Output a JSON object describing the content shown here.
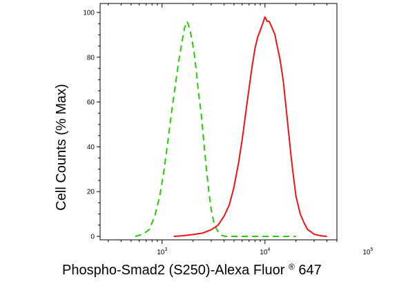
{
  "chart_data": {
    "type": "line",
    "title": "",
    "xlabel_main": "Phospho-Smad2 (S250)-Alexa Fluor",
    "xlabel_sup": "®",
    "xlabel_tail": " 647",
    "ylabel": "Cell Counts (% Max)",
    "x_scale": "log",
    "xlim": [
      250,
      50000
    ],
    "ylim": [
      0,
      100
    ],
    "y_ticks": [
      0,
      20,
      40,
      60,
      80,
      100
    ],
    "y_tick_labels": [
      "0",
      "20",
      "40",
      "60",
      "80",
      "100"
    ],
    "x_major_ticks": [
      {
        "value": 1000,
        "base": "10",
        "exp": "3"
      },
      {
        "value": 10000,
        "base": "10",
        "exp": "4"
      },
      {
        "value": 100000,
        "base": "10",
        "exp": "5"
      }
    ],
    "grid": false,
    "series": [
      {
        "color": "#22cc00",
        "dash": true,
        "x": [
          550,
          650,
          750,
          850,
          950,
          1050,
          1150,
          1250,
          1350,
          1450,
          1550,
          1650,
          1750,
          1850,
          1950,
          2050,
          2150,
          2250,
          2400,
          2550,
          2700,
          2850,
          3000,
          3200,
          3400,
          3600,
          3800,
          4100,
          4500,
          5000,
          7000,
          20000
        ],
        "y": [
          0,
          1,
          3,
          9,
          18,
          30,
          44,
          57,
          68,
          78,
          86,
          93,
          96,
          93,
          88,
          82,
          74,
          65,
          55,
          42,
          30,
          20,
          12,
          6,
          3,
          1.5,
          0.5,
          0,
          0,
          0,
          0,
          0
        ]
      },
      {
        "color": "#ee1111",
        "dash": false,
        "x": [
          1300,
          1600,
          2000,
          2500,
          3000,
          3500,
          4000,
          4500,
          5000,
          5500,
          6000,
          6500,
          7000,
          7500,
          8000,
          8500,
          9000,
          9500,
          10000,
          10500,
          11000,
          11500,
          12000,
          12500,
          13000,
          14000,
          15000,
          16000,
          17000,
          18000,
          19000,
          20000,
          22000,
          24000,
          26000,
          28000,
          30000,
          33000,
          36000,
          40000
        ],
        "y": [
          0,
          0.3,
          0.8,
          1.5,
          3,
          5,
          9,
          14,
          22,
          32,
          43,
          55,
          66,
          76,
          84,
          89,
          92,
          95,
          98,
          96,
          96,
          94,
          92,
          90,
          86,
          79,
          70,
          58,
          46,
          35,
          26,
          18,
          10,
          6,
          3,
          2,
          1,
          0.5,
          0.2,
          0
        ]
      }
    ]
  }
}
